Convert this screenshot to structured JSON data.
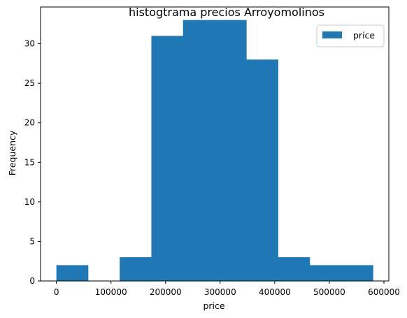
{
  "chart_data": {
    "type": "bar",
    "title": "histogtrama precios Arroyomolinos",
    "xlabel": "price",
    "ylabel": "Frequency",
    "xlim": [
      -29000,
      609000
    ],
    "ylim": [
      0,
      34.65
    ],
    "xticks": [
      0,
      100000,
      200000,
      300000,
      400000,
      500000,
      600000
    ],
    "yticks": [
      0,
      5,
      10,
      15,
      20,
      25,
      30
    ],
    "bins": [
      {
        "x0": 0,
        "x1": 58000,
        "count": 2
      },
      {
        "x0": 58000,
        "x1": 116000,
        "count": 0
      },
      {
        "x0": 116000,
        "x1": 174000,
        "count": 3
      },
      {
        "x0": 174000,
        "x1": 232000,
        "count": 31
      },
      {
        "x0": 232000,
        "x1": 290000,
        "count": 33
      },
      {
        "x0": 290000,
        "x1": 348000,
        "count": 33
      },
      {
        "x0": 348000,
        "x1": 406000,
        "count": 28
      },
      {
        "x0": 406000,
        "x1": 464000,
        "count": 3
      },
      {
        "x0": 464000,
        "x1": 522000,
        "count": 2
      },
      {
        "x0": 522000,
        "x1": 580000,
        "count": 2
      }
    ],
    "series": [
      {
        "name": "price",
        "color": "#1f77b4"
      }
    ],
    "legend_position": "top-right",
    "grid": false
  }
}
